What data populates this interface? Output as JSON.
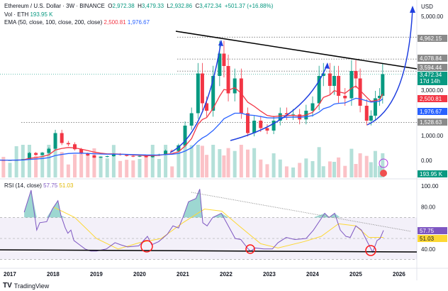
{
  "header": {
    "title": "Ethereum / U.S. Dollar · 3W · BINANCE",
    "o_label": "O",
    "open": "2,972.38",
    "h_label": "H",
    "high": "3,479.33",
    "l_label": "L",
    "low": "2,932.86",
    "c_label": "C",
    "close": "3,472.34",
    "change": "+501.37 (+16.88%)",
    "vol_label": "Vol · ETH",
    "vol_value": "193.95 K",
    "ema_label": "EMA (50, close, 100, close, 200, close)",
    "ema1": "2,500.81",
    "ema2": "1,976.67"
  },
  "rsi_legend": {
    "label": "RSI (14, close)",
    "rsi": "57.75",
    "ma": "51.03"
  },
  "price_axis": {
    "currency": "USD",
    "ticks": [
      "5,000.00",
      "3,000.00",
      "1,000.00",
      "0.00"
    ],
    "labels": {
      "level1": "4,962.15",
      "level2": "4,078.84",
      "level3": "3,594.44",
      "last": "3,472.34",
      "countdown": "17d 14h",
      "ema1": "2,500.81",
      "ema2": "1,976.67",
      "level4": "1,528.63",
      "volume": "193.95 K"
    }
  },
  "rsi_axis": {
    "ticks": [
      "100.00",
      "80.00",
      "40.00"
    ],
    "rsi": "57.75",
    "ma": "51.03"
  },
  "time_axis": [
    "2017",
    "2018",
    "2019",
    "2020",
    "2021",
    "2022",
    "2023",
    "2024",
    "2025",
    "2026"
  ],
  "footer": {
    "brand": "TradingView"
  },
  "colors": {
    "up": "#089981",
    "down": "#f23645",
    "ema50": "#f23645",
    "ema200": "#2962ff",
    "rsi": "#7e57c2",
    "rsi_ma": "#fdd835",
    "trend": "#000000",
    "drawing": "#1f3fe0",
    "circle": "#ff1a1a"
  },
  "chart_data": [
    {
      "type": "candlestick",
      "title": "Ethereum / U.S. Dollar · 3W · BINANCE",
      "yscale": "linear",
      "ylim": [
        0,
        5500
      ],
      "xlim": [
        2016.8,
        2026.2
      ],
      "levels": [
        4962.15,
        4078.84,
        3594.44,
        1528.63
      ],
      "series": [
        {
          "x": [
            2016.7,
            2016.85,
            2017.0,
            2017.15,
            2017.3,
            2017.45,
            2017.6,
            2017.75,
            2017.9,
            2018.05,
            2018.2,
            2018.35,
            2018.5,
            2018.65,
            2018.8,
            2018.95,
            2019.1,
            2019.25,
            2019.4,
            2019.55,
            2019.7,
            2019.85,
            2020.0,
            2020.15,
            2020.3,
            2020.45,
            2020.6,
            2020.75,
            2020.9,
            2021.05,
            2021.2,
            2021.35,
            2021.45,
            2021.55,
            2021.7,
            2021.85,
            2021.95,
            2022.05,
            2022.2,
            2022.35,
            2022.5,
            2022.65,
            2022.8,
            2022.95,
            2023.1,
            2023.25,
            2023.4,
            2023.55,
            2023.7,
            2023.85,
            2024.0,
            2024.15,
            2024.25,
            2024.4,
            2024.5,
            2024.6,
            2024.75,
            2024.9,
            2025.0,
            2025.1,
            2025.25,
            2025.35,
            2025.45,
            2025.55,
            2025.62
          ],
          "close": [
            12,
            9,
            10,
            15,
            50,
            300,
            220,
            300,
            470,
            1100,
            700,
            650,
            450,
            280,
            200,
            110,
            140,
            170,
            260,
            220,
            180,
            150,
            180,
            130,
            200,
            240,
            390,
            380,
            600,
            1400,
            1900,
            3500,
            2300,
            2000,
            3400,
            4300,
            3800,
            2700,
            3300,
            1900,
            1100,
            1600,
            1300,
            1200,
            1600,
            1900,
            1850,
            1850,
            1650,
            2000,
            2300,
            3400,
            3500,
            3000,
            3400,
            2600,
            2500,
            3600,
            3300,
            2200,
            1600,
            1800,
            2500,
            2600,
            3472.34
          ]
        }
      ]
    },
    {
      "type": "line",
      "title": "RSI (14, close)",
      "ylim": [
        20,
        105
      ],
      "bands": [
        30,
        50,
        70
      ],
      "series": [
        {
          "name": "RSI",
          "x": [
            2017.33,
            2017.49,
            2017.62,
            2017.69,
            2017.85,
            2017.98,
            2018.11,
            2018.18,
            2018.28,
            2018.34,
            2018.41,
            2018.48,
            2018.61,
            2018.74,
            2018.87,
            2019.0,
            2019.23,
            2019.43,
            2019.56,
            2019.72,
            2019.98,
            2020.18,
            2020.28,
            2020.44,
            2020.64,
            2020.77,
            2020.9,
            2021.0,
            2021.13,
            2021.3,
            2021.39,
            2021.46,
            2021.56,
            2021.69,
            2021.89,
            2022.05,
            2022.21,
            2022.34,
            2022.51,
            2022.57,
            2022.67,
            2022.87,
            2023.07,
            2023.2,
            2023.39,
            2023.59,
            2023.85,
            2024.02,
            2024.28,
            2024.38,
            2024.51,
            2024.64,
            2024.77,
            2024.87,
            2025.0,
            2025.13,
            2025.3,
            2025.39,
            2025.49,
            2025.56,
            2025.64
          ],
          "y": [
            75,
            96,
            58,
            65,
            66,
            78,
            86,
            72,
            60,
            55,
            58,
            48,
            44,
            40,
            38,
            38,
            40,
            46,
            44,
            42,
            43,
            52,
            44,
            47,
            54,
            62,
            60,
            70,
            85,
            88,
            97,
            65,
            62,
            70,
            74,
            62,
            50,
            49,
            40,
            38,
            41,
            40,
            40,
            46,
            51,
            49,
            50,
            58,
            74,
            70,
            74,
            58,
            52,
            51,
            62,
            58,
            44,
            37,
            48,
            50,
            57.75
          ]
        },
        {
          "name": "RSI-based MA",
          "x": [
            2018.0,
            2018.5,
            2019.0,
            2019.5,
            2020.0,
            2020.5,
            2021.0,
            2021.5,
            2021.9,
            2022.3,
            2022.8,
            2023.2,
            2023.8,
            2024.2,
            2024.6,
            2025.0,
            2025.3,
            2025.64
          ],
          "y": [
            80,
            70,
            50,
            40,
            46,
            50,
            65,
            78,
            76,
            62,
            45,
            41,
            47,
            52,
            64,
            62,
            51,
            51.03
          ]
        }
      ]
    }
  ]
}
